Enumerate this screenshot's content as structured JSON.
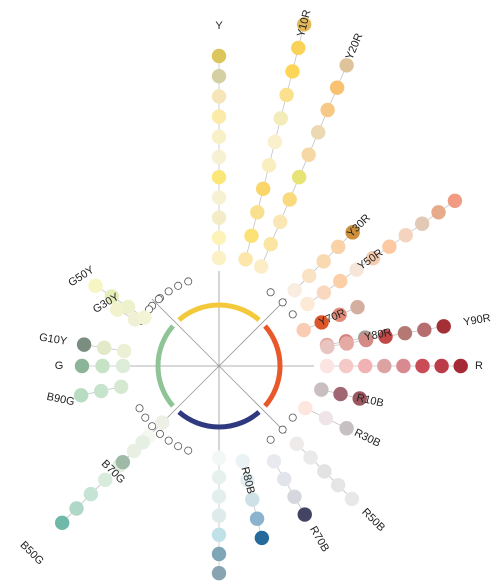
{
  "title": "",
  "colors": {
    "arc_yellow": "#f3c93b",
    "arc_red": "#e8582a",
    "arc_blue": "#2e3980",
    "arc_green": "#8fc497",
    "line": "#9a9a9a",
    "ring_stroke": "#555555"
  },
  "hue_spokes": [
    {
      "label": "Y",
      "dots": [
        "#fbf1c5",
        "#fdf2b8",
        "#f4ecc7",
        "#f6f1d3",
        "#fae778",
        "#f6f1d3",
        "#f8f0c6",
        "#fbeaa8",
        "#f5e5b8",
        "#d5cfa4",
        "#dcc55a"
      ]
    },
    {
      "label": "Y10R",
      "dots": [
        "#fde6aa",
        "#fbe176",
        "#f9e08e",
        "#fad56a",
        "#f8eec0",
        "#fbf0cc",
        "#f3ecb8",
        "#fbe08d",
        "#fcd559",
        "#f9d25a",
        "#e1b95a"
      ]
    },
    {
      "label": "Y20R",
      "dots": [
        "#fbeec6",
        "#fae5a2",
        "#fae7b5",
        "#fada7f",
        "#e7e374",
        "#f6d8a5",
        "#ecd9b4",
        "#f7c986",
        "#f8c272",
        "#dfc39b"
      ]
    },
    {
      "label": "Y30R",
      "dots": [
        "#f9ede0",
        "#fae3c4",
        "#f8d9b0",
        "#f9d2a8",
        "#cd8f3b"
      ]
    },
    {
      "label": "Y50R",
      "dots": [
        "#fce9d6",
        "#fad8c0",
        "#fbd0a7",
        "#f6e6d9",
        "#f5cbaf",
        "#fcc9a2",
        "#f4d3bf",
        "#e1c9b6",
        "#e7aa8a",
        "#f09b82"
      ]
    },
    {
      "label": "Y70R",
      "dots": [
        "#f9ccb4",
        "#dd562a",
        "#e68a78",
        "#d4af9f"
      ]
    },
    {
      "label": "Y80R",
      "dots": [
        "#e5a8a1",
        "#d2817a",
        "#a49c94"
      ]
    },
    {
      "label": "Y90R",
      "dots": [
        "#e8c5c1",
        "#e6aaa4",
        "#d58b85",
        "#c34848",
        "#b57872",
        "#b66e6f",
        "#a43036"
      ]
    },
    {
      "label": "R",
      "dots": [
        "#fbe4e1",
        "#f5c9c6",
        "#f2b2b3",
        "#dda3a3",
        "#d88a90",
        "#c94c56",
        "#bb3b48",
        "#a52a35"
      ]
    },
    {
      "label": "R10B",
      "dots": [
        "#c9bfc0",
        "#a06671",
        "#9b565f"
      ]
    },
    {
      "label": "R30B",
      "dots": [
        "#fce6de",
        "#efe4e8",
        "#c6c0c3"
      ]
    },
    {
      "label": "R50B",
      "dots": [
        "#eeeaea",
        "#eaeaea",
        "#e3e3e3",
        "#e5e5e5",
        "#e8e8e8"
      ]
    },
    {
      "label": "R70B",
      "dots": [
        "#e9eaf0",
        "#e1e4ea",
        "#d6d7de",
        "#434463"
      ]
    },
    {
      "label": "R80B",
      "dots": [
        "#eaf2f5",
        "#e3f0f3",
        "#cde1e6",
        "#8cb3cd",
        "#266a9b"
      ]
    },
    {
      "label": "B",
      "dots": [
        "#f1f8f5",
        "#e6f1ee",
        "#e3efec",
        "#dfeaea",
        "#c0e1e7",
        "#7ea6b6",
        "#88a4b1"
      ]
    },
    {
      "label": "B50G",
      "dots": [
        "#f5f8f0",
        "#e9f0e3",
        "#e3eee0",
        "#d8ebdc",
        "#c5e4d6",
        "#b0d8c8",
        "#6fb9a8"
      ]
    },
    {
      "label": "B70G",
      "dots": [
        "#edf1e5",
        "#e5efe2",
        "#9fb9a7"
      ]
    },
    {
      "label": "B90G",
      "dots": [
        "#d4e9d0",
        "#c6e3cb",
        "#b8dcc1"
      ]
    },
    {
      "label": "G",
      "dots": [
        "#dcecd7",
        "#c7e3c6",
        "#8bb596"
      ]
    },
    {
      "label": "G10Y",
      "dots": [
        "#ecf1d5",
        "#e1e9c8",
        "#7a8d7e"
      ]
    },
    {
      "label": "G30Y",
      "dots": [
        "#f0f1d4",
        "#f2f3cd"
      ]
    },
    {
      "label": "G50Y",
      "dots": [
        "#f3f3d5",
        "#eef2cc",
        "#e6eeb9",
        "#f6f6c5"
      ]
    }
  ]
}
